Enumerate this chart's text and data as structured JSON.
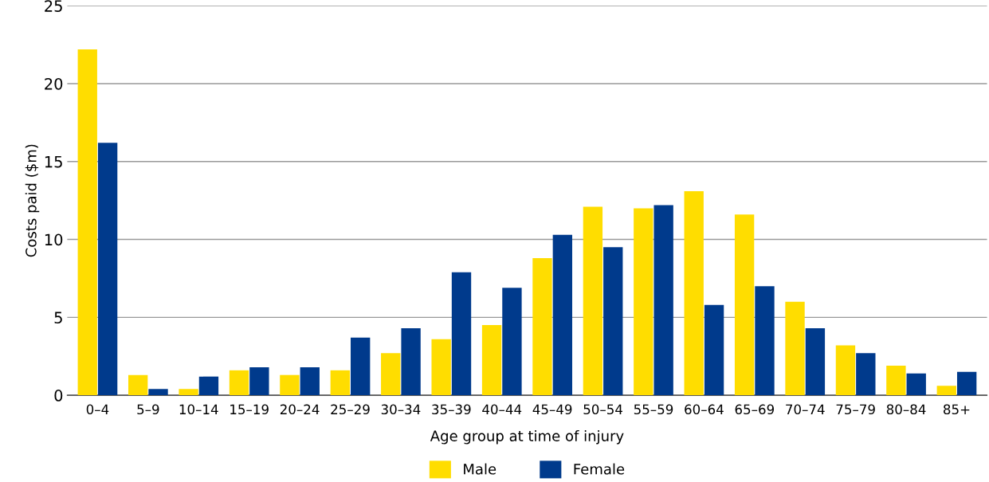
{
  "chart_data": {
    "type": "bar",
    "xlabel": "Age group at time of injury",
    "ylabel": "Costs paid ($m)",
    "categories": [
      "0–4",
      "5–9",
      "10–14",
      "15–19",
      "20–24",
      "25–29",
      "30–34",
      "35–39",
      "40–44",
      "45–49",
      "50–54",
      "55–59",
      "60–64",
      "65–69",
      "70–74",
      "75–79",
      "80–84",
      "85+"
    ],
    "series": [
      {
        "name": "Male",
        "color": "#ffdd00",
        "values": [
          22.2,
          1.3,
          0.4,
          1.6,
          1.3,
          1.6,
          2.7,
          3.6,
          4.5,
          8.8,
          12.1,
          12.0,
          13.1,
          11.6,
          6.0,
          3.2,
          1.9,
          0.6
        ]
      },
      {
        "name": "Female",
        "color": "#003a8c",
        "values": [
          16.2,
          0.4,
          1.2,
          1.8,
          1.8,
          3.7,
          4.3,
          7.9,
          6.9,
          10.3,
          9.5,
          12.2,
          5.8,
          7.0,
          4.3,
          2.7,
          1.4,
          1.5
        ]
      }
    ],
    "ylim": [
      0,
      25
    ],
    "yticks": [
      0,
      5,
      10,
      15,
      20,
      25
    ],
    "grid": "y",
    "legend": "bottom"
  }
}
